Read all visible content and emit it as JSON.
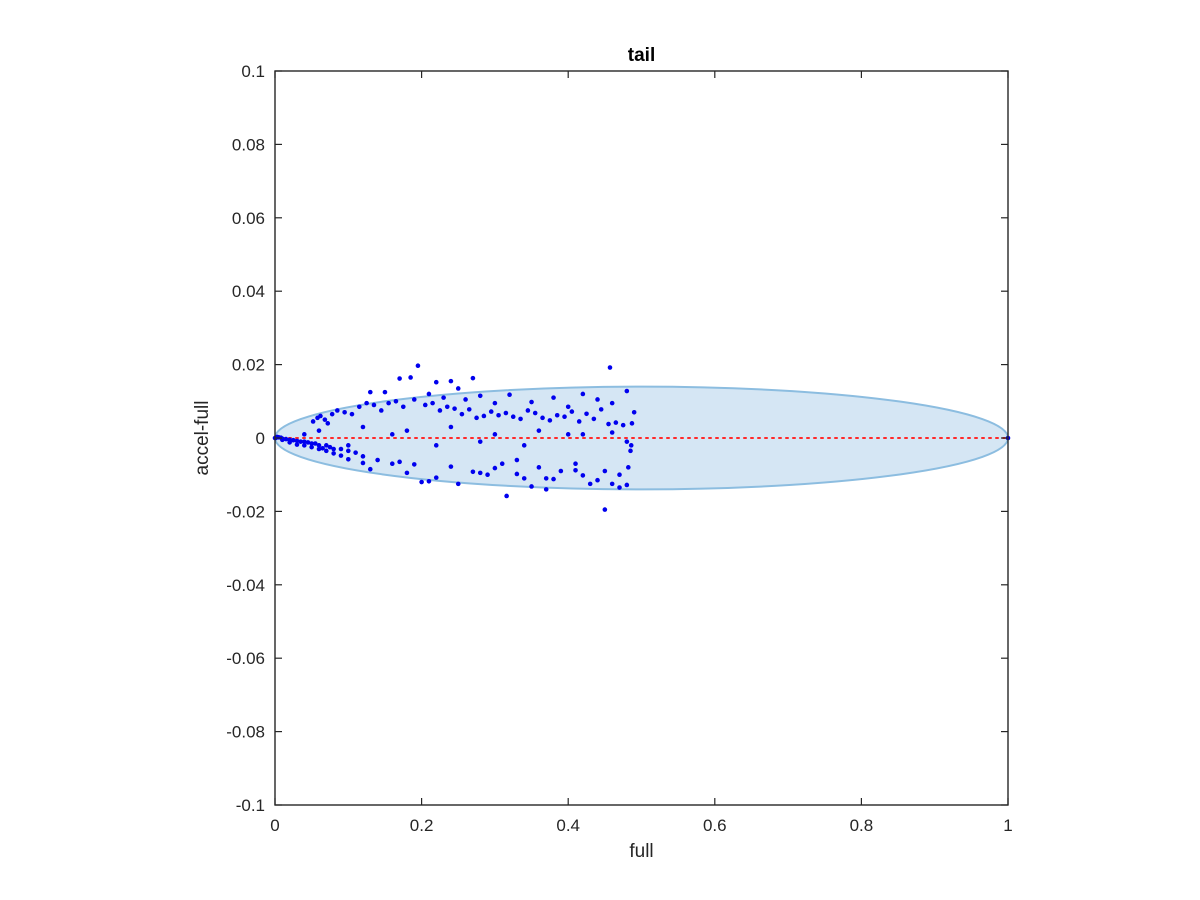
{
  "chart_data": {
    "type": "scatter",
    "title": "tail",
    "xlabel": "full",
    "ylabel": "accel-full",
    "xlim": [
      0,
      1
    ],
    "ylim": [
      -0.1,
      0.1
    ],
    "xticks": [
      0,
      0.2,
      0.4,
      0.6,
      0.8,
      1
    ],
    "xtick_labels": [
      "0",
      "0.2",
      "0.4",
      "0.6",
      "0.8",
      "1"
    ],
    "yticks": [
      -0.1,
      -0.08,
      -0.06,
      -0.04,
      -0.02,
      0,
      0.02,
      0.04,
      0.06,
      0.08,
      0.1
    ],
    "ytick_labels": [
      "-0.1",
      "-0.08",
      "-0.06",
      "-0.04",
      "-0.02",
      "0",
      "0.02",
      "0.04",
      "0.06",
      "0.08",
      "0.1"
    ],
    "grid": false,
    "colors": {
      "points": "#0000ee",
      "ellipse_fill": "#d5e6f4",
      "ellipse_edge": "#8cbde0",
      "zero_line": "#ff2a2a",
      "axes": "#262626"
    },
    "ellipse": {
      "center": [
        0.5,
        0
      ],
      "semi_axis_x": 0.5,
      "semi_axis_y": 0.014
    },
    "reference_line": {
      "y": 0,
      "x_range": [
        0,
        1
      ],
      "style": "dotted"
    },
    "series": [
      {
        "x": [
          0.195,
          0.457,
          0.27,
          0.22,
          0.24,
          0.185,
          0.17,
          0.25,
          0.15,
          0.13,
          0.21,
          0.23,
          0.26,
          0.28,
          0.3,
          0.32,
          0.35,
          0.38,
          0.4,
          0.42,
          0.44,
          0.46,
          0.48,
          0.49,
          0.487,
          0.486,
          0.482,
          0.47,
          0.45,
          0.36,
          0.31,
          0.33,
          0.37,
          0.39,
          0.41,
          0.43,
          0.34,
          0.29,
          0.2,
          0.18,
          0.16,
          0.14,
          0.12,
          0.11,
          0.1,
          0.09,
          0.08,
          0.075,
          0.07,
          0.065,
          0.06,
          0.055,
          0.05,
          0.045,
          0.04,
          0.035,
          0.03,
          0.025,
          0.02,
          0.015,
          0.01,
          0.008,
          0.005,
          0.003,
          0.001,
          0.052,
          0.058,
          0.062,
          0.068,
          0.072,
          0.078,
          0.085,
          0.095,
          0.105,
          0.115,
          0.125,
          0.135,
          0.145,
          0.155,
          0.165,
          0.175,
          0.19,
          0.205,
          0.215,
          0.225,
          0.235,
          0.245,
          0.255,
          0.265,
          0.275,
          0.285,
          0.295,
          0.305,
          0.315,
          0.325,
          0.335,
          0.345,
          0.355,
          0.365,
          0.375,
          0.385,
          0.395,
          0.405,
          0.415,
          0.425,
          0.435,
          0.445,
          0.455,
          0.465,
          0.475,
          0.485,
          0.45,
          0.316,
          0.37,
          0.21,
          0.22,
          0.25,
          0.28,
          0.35,
          0.42,
          0.44,
          0.46,
          0.47,
          0.48,
          0.41,
          0.38,
          0.33,
          0.3,
          0.27,
          0.24,
          0.19,
          0.17,
          0.13,
          0.12,
          0.1,
          0.09,
          0.08,
          0.07,
          0.06,
          0.05,
          0.04,
          0.03,
          0.02,
          0.01,
          1.0,
          0.0,
          0.06,
          0.12,
          0.18,
          0.24,
          0.3,
          0.36,
          0.42,
          0.48,
          0.46,
          0.4,
          0.34,
          0.28,
          0.22,
          0.16,
          0.1,
          0.04
        ],
        "y": [
          0.0197,
          0.0192,
          0.0163,
          0.0152,
          0.0155,
          0.0165,
          0.0162,
          0.0135,
          0.0125,
          0.0125,
          0.012,
          0.011,
          0.0105,
          0.0115,
          0.0095,
          0.0118,
          0.0098,
          0.011,
          0.0085,
          0.012,
          0.0105,
          0.0095,
          0.0128,
          0.007,
          0.004,
          -0.002,
          -0.008,
          -0.01,
          -0.009,
          -0.008,
          -0.007,
          -0.006,
          -0.011,
          -0.009,
          -0.007,
          -0.0125,
          -0.011,
          -0.01,
          -0.012,
          -0.0095,
          -0.007,
          -0.006,
          -0.005,
          -0.004,
          -0.0035,
          -0.003,
          -0.003,
          -0.0025,
          -0.002,
          -0.0028,
          -0.002,
          -0.0015,
          -0.0015,
          -0.0012,
          -0.001,
          -0.001,
          -0.0008,
          -0.0006,
          -0.0005,
          -0.0003,
          -0.0002,
          0.0001,
          0.0002,
          0.0003,
          0.0,
          0.0045,
          0.0055,
          0.006,
          0.005,
          0.004,
          0.0065,
          0.0075,
          0.007,
          0.0065,
          0.0085,
          0.0095,
          0.009,
          0.0075,
          0.0095,
          0.01,
          0.0085,
          0.0105,
          0.009,
          0.0095,
          0.0075,
          0.0085,
          0.008,
          0.0065,
          0.0078,
          0.0055,
          0.006,
          0.0072,
          0.0062,
          0.0068,
          0.0058,
          0.0052,
          0.0075,
          0.0068,
          0.0055,
          0.0048,
          0.0062,
          0.0058,
          0.0072,
          0.0045,
          0.0066,
          0.0052,
          0.0078,
          0.0038,
          0.0042,
          0.0035,
          -0.0035,
          -0.0195,
          -0.0158,
          -0.014,
          -0.0118,
          -0.0108,
          -0.0125,
          -0.0095,
          -0.0132,
          -0.0102,
          -0.0115,
          -0.0125,
          -0.0135,
          -0.0128,
          -0.0088,
          -0.0112,
          -0.0098,
          -0.0082,
          -0.0092,
          -0.0078,
          -0.0072,
          -0.0065,
          -0.0085,
          -0.0068,
          -0.0058,
          -0.0048,
          -0.0042,
          -0.0035,
          -0.003,
          -0.0025,
          -0.002,
          -0.0018,
          -0.0012,
          -0.0005,
          0.0,
          0.0,
          0.002,
          0.003,
          0.002,
          0.003,
          0.001,
          0.002,
          0.001,
          -0.001,
          0.0015,
          0.001,
          -0.002,
          -0.001,
          -0.002,
          0.001,
          -0.002,
          0.001
        ]
      }
    ]
  }
}
